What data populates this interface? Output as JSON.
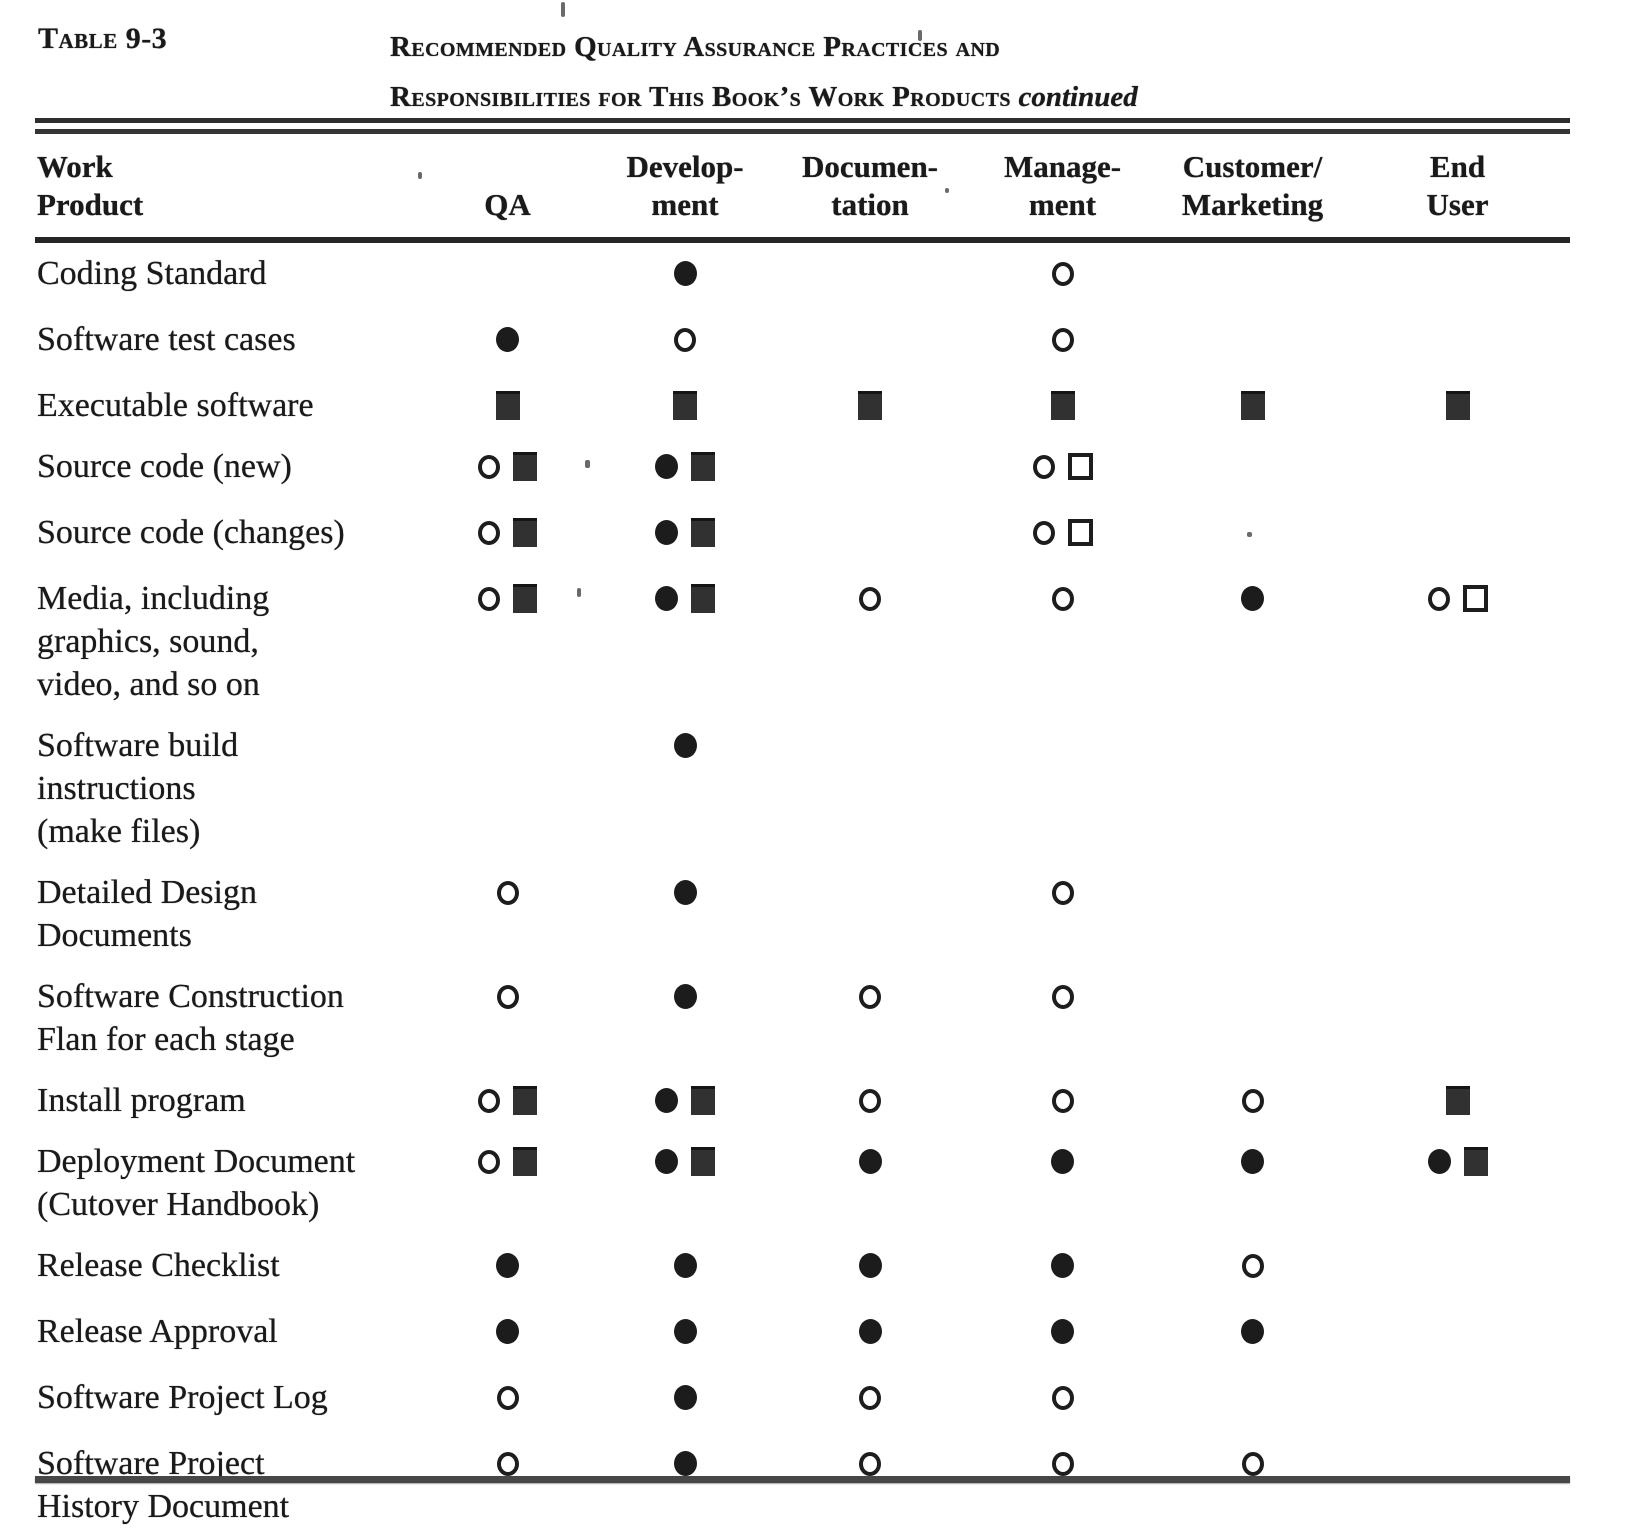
{
  "colors": {
    "paper": "#ffffff",
    "ink": "#1a1a1a",
    "filled_square_fill": "#313131",
    "rule": "#2e2e2e"
  },
  "header": {
    "table_label": "Table 9-3",
    "title_line1": "Recommended Quality Assurance Practices and",
    "title_line2": "Responsibilities for This Book’s Work Products",
    "continued": "continued"
  },
  "symbols": {
    "filled-circle": "●",
    "open-circle": "○",
    "filled-square": "■",
    "open-square": "□"
  },
  "table": {
    "columns": [
      {
        "id": "work_product",
        "line1": "Work",
        "line2": "Product"
      },
      {
        "id": "qa",
        "line1": "",
        "line2": "QA"
      },
      {
        "id": "development",
        "line1": "Develop-",
        "line2": "ment"
      },
      {
        "id": "documentation",
        "line1": "Documen-",
        "line2": "tation"
      },
      {
        "id": "management",
        "line1": "Manage-",
        "line2": "ment"
      },
      {
        "id": "customer_marketing",
        "line1": "Customer/",
        "line2": "Marketing"
      },
      {
        "id": "end_user",
        "line1": "End",
        "line2": "User"
      }
    ],
    "column_order": [
      "qa",
      "development",
      "documentation",
      "management",
      "customer_marketing",
      "end_user"
    ],
    "rows": [
      {
        "label_lines": [
          "Coding Standard"
        ],
        "cells": {
          "qa": [],
          "development": [
            "filled-circle"
          ],
          "documentation": [],
          "management": [
            "open-circle"
          ],
          "customer_marketing": [],
          "end_user": []
        }
      },
      {
        "label_lines": [
          "Software test cases"
        ],
        "cells": {
          "qa": [
            "filled-circle"
          ],
          "development": [
            "open-circle"
          ],
          "documentation": [],
          "management": [
            "open-circle"
          ],
          "customer_marketing": [],
          "end_user": []
        }
      },
      {
        "label_lines": [
          "Executable software"
        ],
        "cells": {
          "qa": [
            "filled-square"
          ],
          "development": [
            "filled-square"
          ],
          "documentation": [
            "filled-square"
          ],
          "management": [
            "filled-square"
          ],
          "customer_marketing": [
            "filled-square"
          ],
          "end_user": [
            "filled-square"
          ]
        }
      },
      {
        "label_lines": [
          "Source code (new)"
        ],
        "cells": {
          "qa": [
            "open-circle",
            "filled-square"
          ],
          "development": [
            "filled-circle",
            "filled-square"
          ],
          "documentation": [],
          "management": [
            "open-circle",
            "open-square"
          ],
          "customer_marketing": [],
          "end_user": []
        }
      },
      {
        "label_lines": [
          "Source code (changes)"
        ],
        "cells": {
          "qa": [
            "open-circle",
            "filled-square"
          ],
          "development": [
            "filled-circle",
            "filled-square"
          ],
          "documentation": [],
          "management": [
            "open-circle",
            "open-square"
          ],
          "customer_marketing": [],
          "end_user": []
        }
      },
      {
        "label_lines": [
          "Media, including",
          "graphics, sound,",
          "video, and so on"
        ],
        "cells": {
          "qa": [
            "open-circle",
            "filled-square"
          ],
          "development": [
            "filled-circle",
            "filled-square"
          ],
          "documentation": [
            "open-circle"
          ],
          "management": [
            "open-circle"
          ],
          "customer_marketing": [
            "filled-circle"
          ],
          "end_user": [
            "open-circle",
            "open-square"
          ]
        }
      },
      {
        "label_lines": [
          "Software  build",
          "instructions",
          "(make files)"
        ],
        "cells": {
          "qa": [],
          "development": [
            "filled-circle"
          ],
          "documentation": [],
          "management": [],
          "customer_marketing": [],
          "end_user": []
        }
      },
      {
        "label_lines": [
          "Detailed Design",
          "Documents"
        ],
        "cells": {
          "qa": [
            "open-circle"
          ],
          "development": [
            "filled-circle"
          ],
          "documentation": [],
          "management": [
            "open-circle"
          ],
          "customer_marketing": [],
          "end_user": []
        }
      },
      {
        "label_lines": [
          "Software  Construction",
          "Flan for each stage"
        ],
        "cells": {
          "qa": [
            "open-circle"
          ],
          "development": [
            "filled-circle"
          ],
          "documentation": [
            "open-circle"
          ],
          "management": [
            "open-circle"
          ],
          "customer_marketing": [],
          "end_user": []
        }
      },
      {
        "label_lines": [
          "Install program"
        ],
        "cells": {
          "qa": [
            "open-circle",
            "filled-square"
          ],
          "development": [
            "filled-circle",
            "filled-square"
          ],
          "documentation": [
            "open-circle"
          ],
          "management": [
            "open-circle"
          ],
          "customer_marketing": [
            "open-circle"
          ],
          "end_user": [
            "filled-square"
          ]
        }
      },
      {
        "label_lines": [
          "Deployment Document",
          "(Cutover  Handbook)"
        ],
        "cells": {
          "qa": [
            "open-circle",
            "filled-square"
          ],
          "development": [
            "filled-circle",
            "filled-square"
          ],
          "documentation": [
            "filled-circle"
          ],
          "management": [
            "filled-circle"
          ],
          "customer_marketing": [
            "filled-circle"
          ],
          "end_user": [
            "filled-circle",
            "filled-square"
          ]
        }
      },
      {
        "label_lines": [
          "Release  Checklist"
        ],
        "cells": {
          "qa": [
            "filled-circle"
          ],
          "development": [
            "filled-circle"
          ],
          "documentation": [
            "filled-circle"
          ],
          "management": [
            "filled-circle"
          ],
          "customer_marketing": [
            "open-circle"
          ],
          "end_user": []
        }
      },
      {
        "label_lines": [
          "Release  Approval"
        ],
        "cells": {
          "qa": [
            "filled-circle"
          ],
          "development": [
            "filled-circle"
          ],
          "documentation": [
            "filled-circle"
          ],
          "management": [
            "filled-circle"
          ],
          "customer_marketing": [
            "filled-circle"
          ],
          "end_user": []
        }
      },
      {
        "label_lines": [
          "Software Project Log"
        ],
        "cells": {
          "qa": [
            "open-circle"
          ],
          "development": [
            "filled-circle"
          ],
          "documentation": [
            "open-circle"
          ],
          "management": [
            "open-circle"
          ],
          "customer_marketing": [],
          "end_user": []
        }
      },
      {
        "label_lines": [
          "Software Project",
          "History Document"
        ],
        "cells": {
          "qa": [
            "open-circle"
          ],
          "development": [
            "filled-circle"
          ],
          "documentation": [
            "open-circle"
          ],
          "management": [
            "open-circle"
          ],
          "customer_marketing": [
            "open-circle"
          ],
          "end_user": []
        }
      }
    ]
  }
}
